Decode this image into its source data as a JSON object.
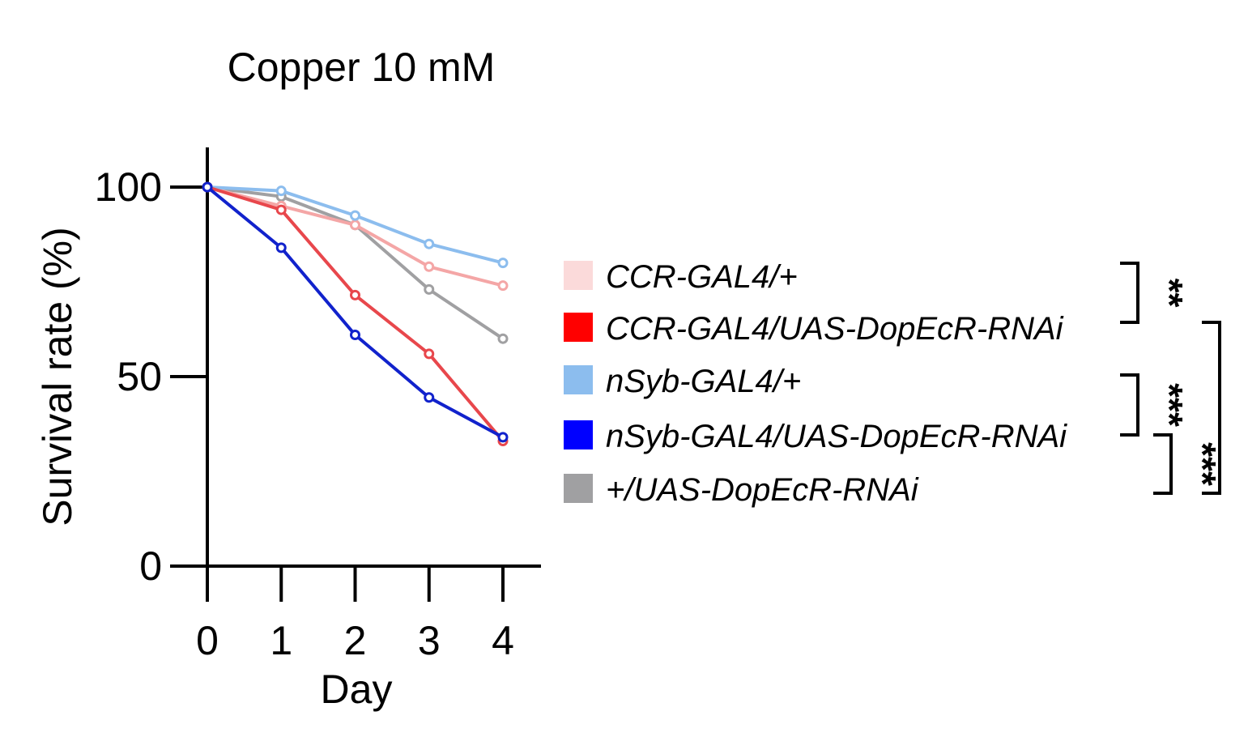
{
  "chart_data": {
    "type": "line",
    "title": "Copper 10 mM",
    "xlabel": "Day",
    "ylabel": "Survival rate (%)",
    "x": [
      0,
      1,
      2,
      3,
      4
    ],
    "xlim": [
      0,
      4
    ],
    "ylim": [
      0,
      100
    ],
    "x_ticks": [
      "0",
      "1",
      "2",
      "3",
      "4"
    ],
    "y_ticks": [
      "0",
      "50",
      "100"
    ],
    "grid": false,
    "legend_position": "right",
    "series": [
      {
        "name": "CCR-GAL4/+",
        "color": "#F4A6A6",
        "legend_color": "#FBDADA",
        "values": [
          100,
          95,
          90,
          79,
          74
        ]
      },
      {
        "name": "CCR-GAL4/UAS-DopEcR-RNAi",
        "color": "#E8474C",
        "legend_color": "#FF0000",
        "values": [
          100,
          94,
          71.5,
          56,
          33
        ]
      },
      {
        "name": "nSyb-GAL4/+",
        "color": "#8CBDEE",
        "legend_color": "#8CBDEE",
        "values": [
          100,
          99,
          92.5,
          85,
          80
        ]
      },
      {
        "name": "nSyb-GAL4/UAS-DopEcR-RNAi",
        "color": "#1122CC",
        "legend_color": "#0000FF",
        "values": [
          100,
          84,
          61,
          44.5,
          34
        ]
      },
      {
        "name": "+/UAS-DopEcR-RNAi",
        "color": "#A0A0A2",
        "legend_color": "#A0A0A2",
        "values": [
          100,
          97.5,
          90,
          73,
          60
        ]
      }
    ],
    "significance": [
      {
        "between": [
          0,
          1
        ],
        "label": "**"
      },
      {
        "between": [
          2,
          3
        ],
        "label": "***"
      },
      {
        "between": [
          3,
          4
        ],
        "label": "***"
      },
      {
        "between": [
          1,
          4
        ],
        "label": "**"
      }
    ]
  }
}
